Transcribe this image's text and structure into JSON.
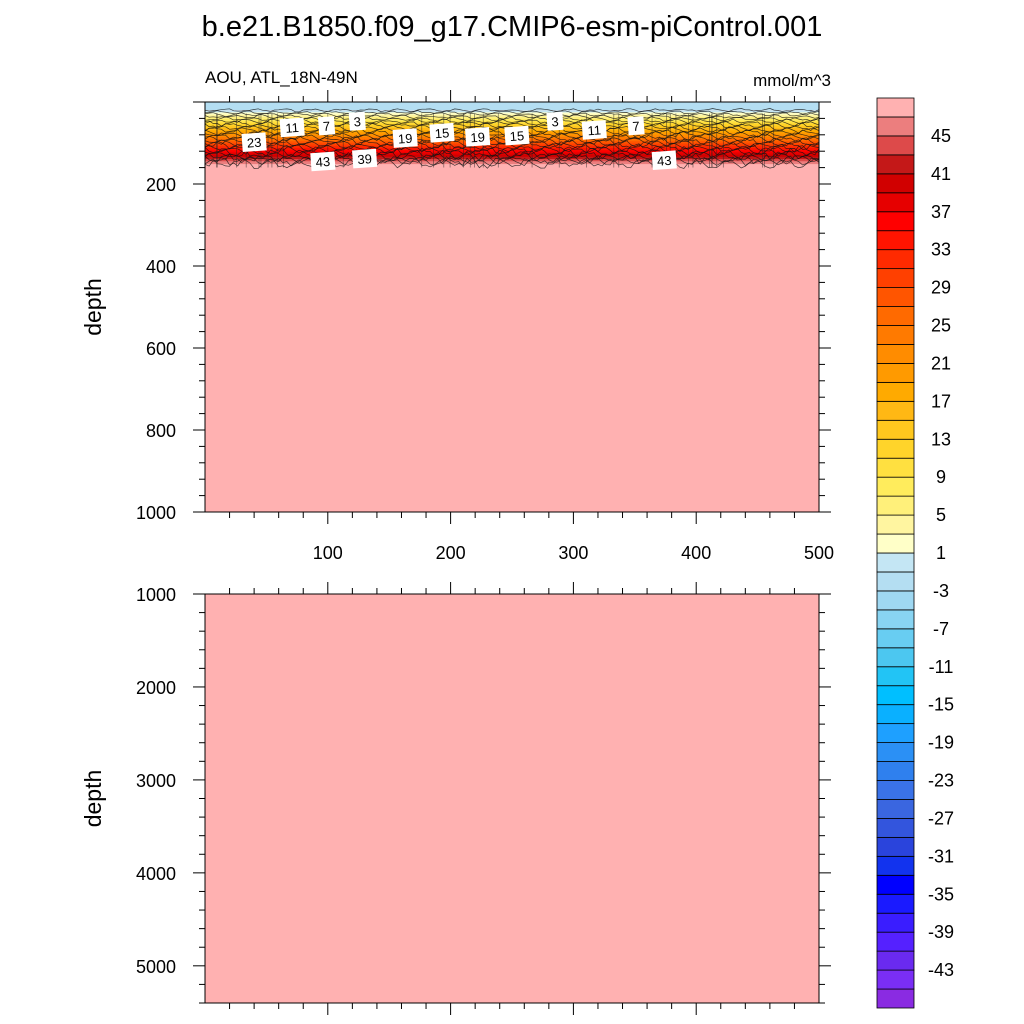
{
  "chart_data": {
    "type": "heatmap",
    "title": "b.e21.B1850.f09_g17.CMIP6-esm-piControl.001",
    "variable_label": "AOU, ATL_18N-49N",
    "units_label": "mmol/m^3",
    "colorbar": {
      "levels": [
        -47,
        -45,
        -43,
        -41,
        -39,
        -37,
        -35,
        -33,
        -31,
        -29,
        -27,
        -25,
        -23,
        -21,
        -19,
        -17,
        -15,
        -13,
        -11,
        -9,
        -7,
        -5,
        -3,
        -1,
        1,
        3,
        5,
        7,
        9,
        11,
        13,
        15,
        17,
        19,
        21,
        23,
        25,
        27,
        29,
        31,
        33,
        35,
        37,
        39,
        41,
        43,
        45,
        47
      ],
      "tick_labels": [
        "-43",
        "-39",
        "-35",
        "-31",
        "-27",
        "-23",
        "-19",
        "-15",
        "-11",
        "-7",
        "-3",
        "1",
        "5",
        "9",
        "13",
        "17",
        "21",
        "25",
        "29",
        "33",
        "37",
        "41",
        "45"
      ],
      "colors": [
        "#8a2be2",
        "#7a2ef5",
        "#6a2af0",
        "#5521ff",
        "#3a1dff",
        "#1a1aff",
        "#0000ff",
        "#1233ee",
        "#2a44dc",
        "#3355dd",
        "#3a66e0",
        "#3a72e8",
        "#2f80ee",
        "#2b90f5",
        "#1ea0ff",
        "#0ab0ff",
        "#00bfff",
        "#22c4f5",
        "#4cc7f0",
        "#68cdf2",
        "#88d4f2",
        "#9fd8f2",
        "#b4def2",
        "#c4e6f4",
        "#ffffc8",
        "#fff5a0",
        "#fff07a",
        "#ffec5c",
        "#ffe040",
        "#ffd42a",
        "#ffc81e",
        "#ffb814",
        "#ffaa00",
        "#ff9a00",
        "#ff8c00",
        "#ff7a00",
        "#ff6a00",
        "#ff5500",
        "#ff4000",
        "#ff2a00",
        "#ff1400",
        "#ff0000",
        "#e60000",
        "#d10000",
        "#c41818",
        "#dd4a4a",
        "#ec7e7e",
        "#ffb1b1"
      ]
    },
    "panels": [
      {
        "id": "upper",
        "ylabel": "depth",
        "ylim": [
          1000,
          0
        ],
        "xlim": [
          0,
          500
        ],
        "xticks": [
          100,
          200,
          300,
          400,
          500
        ],
        "yticks": [
          200,
          400,
          600,
          800,
          1000
        ],
        "field": {
          "surface_value": -3,
          "surface_depth": 20,
          "gradient_top_depth": 30,
          "gradient_bottom_depth": 150,
          "deep_value": 47
        },
        "contour_labels": [
          {
            "text": "23",
            "x": 40,
            "depth": 98
          },
          {
            "text": "11",
            "x": 71,
            "depth": 62
          },
          {
            "text": "7",
            "x": 99,
            "depth": 58
          },
          {
            "text": "3",
            "x": 124,
            "depth": 47
          },
          {
            "text": "43",
            "x": 96,
            "depth": 145
          },
          {
            "text": "39",
            "x": 130,
            "depth": 138
          },
          {
            "text": "19",
            "x": 163,
            "depth": 88
          },
          {
            "text": "15",
            "x": 193,
            "depth": 75
          },
          {
            "text": "19",
            "x": 222,
            "depth": 85
          },
          {
            "text": "15",
            "x": 254,
            "depth": 82
          },
          {
            "text": "3",
            "x": 285,
            "depth": 47
          },
          {
            "text": "11",
            "x": 317,
            "depth": 68
          },
          {
            "text": "7",
            "x": 351,
            "depth": 58
          },
          {
            "text": "43",
            "x": 374,
            "depth": 142
          }
        ]
      },
      {
        "id": "lower",
        "ylabel": "depth",
        "ylim": [
          5400,
          1000
        ],
        "xlim": [
          0,
          500
        ],
        "xticks": [],
        "yticks": [
          1000,
          2000,
          3000,
          4000,
          5000
        ],
        "field": {
          "deep_value": 47
        }
      }
    ]
  }
}
